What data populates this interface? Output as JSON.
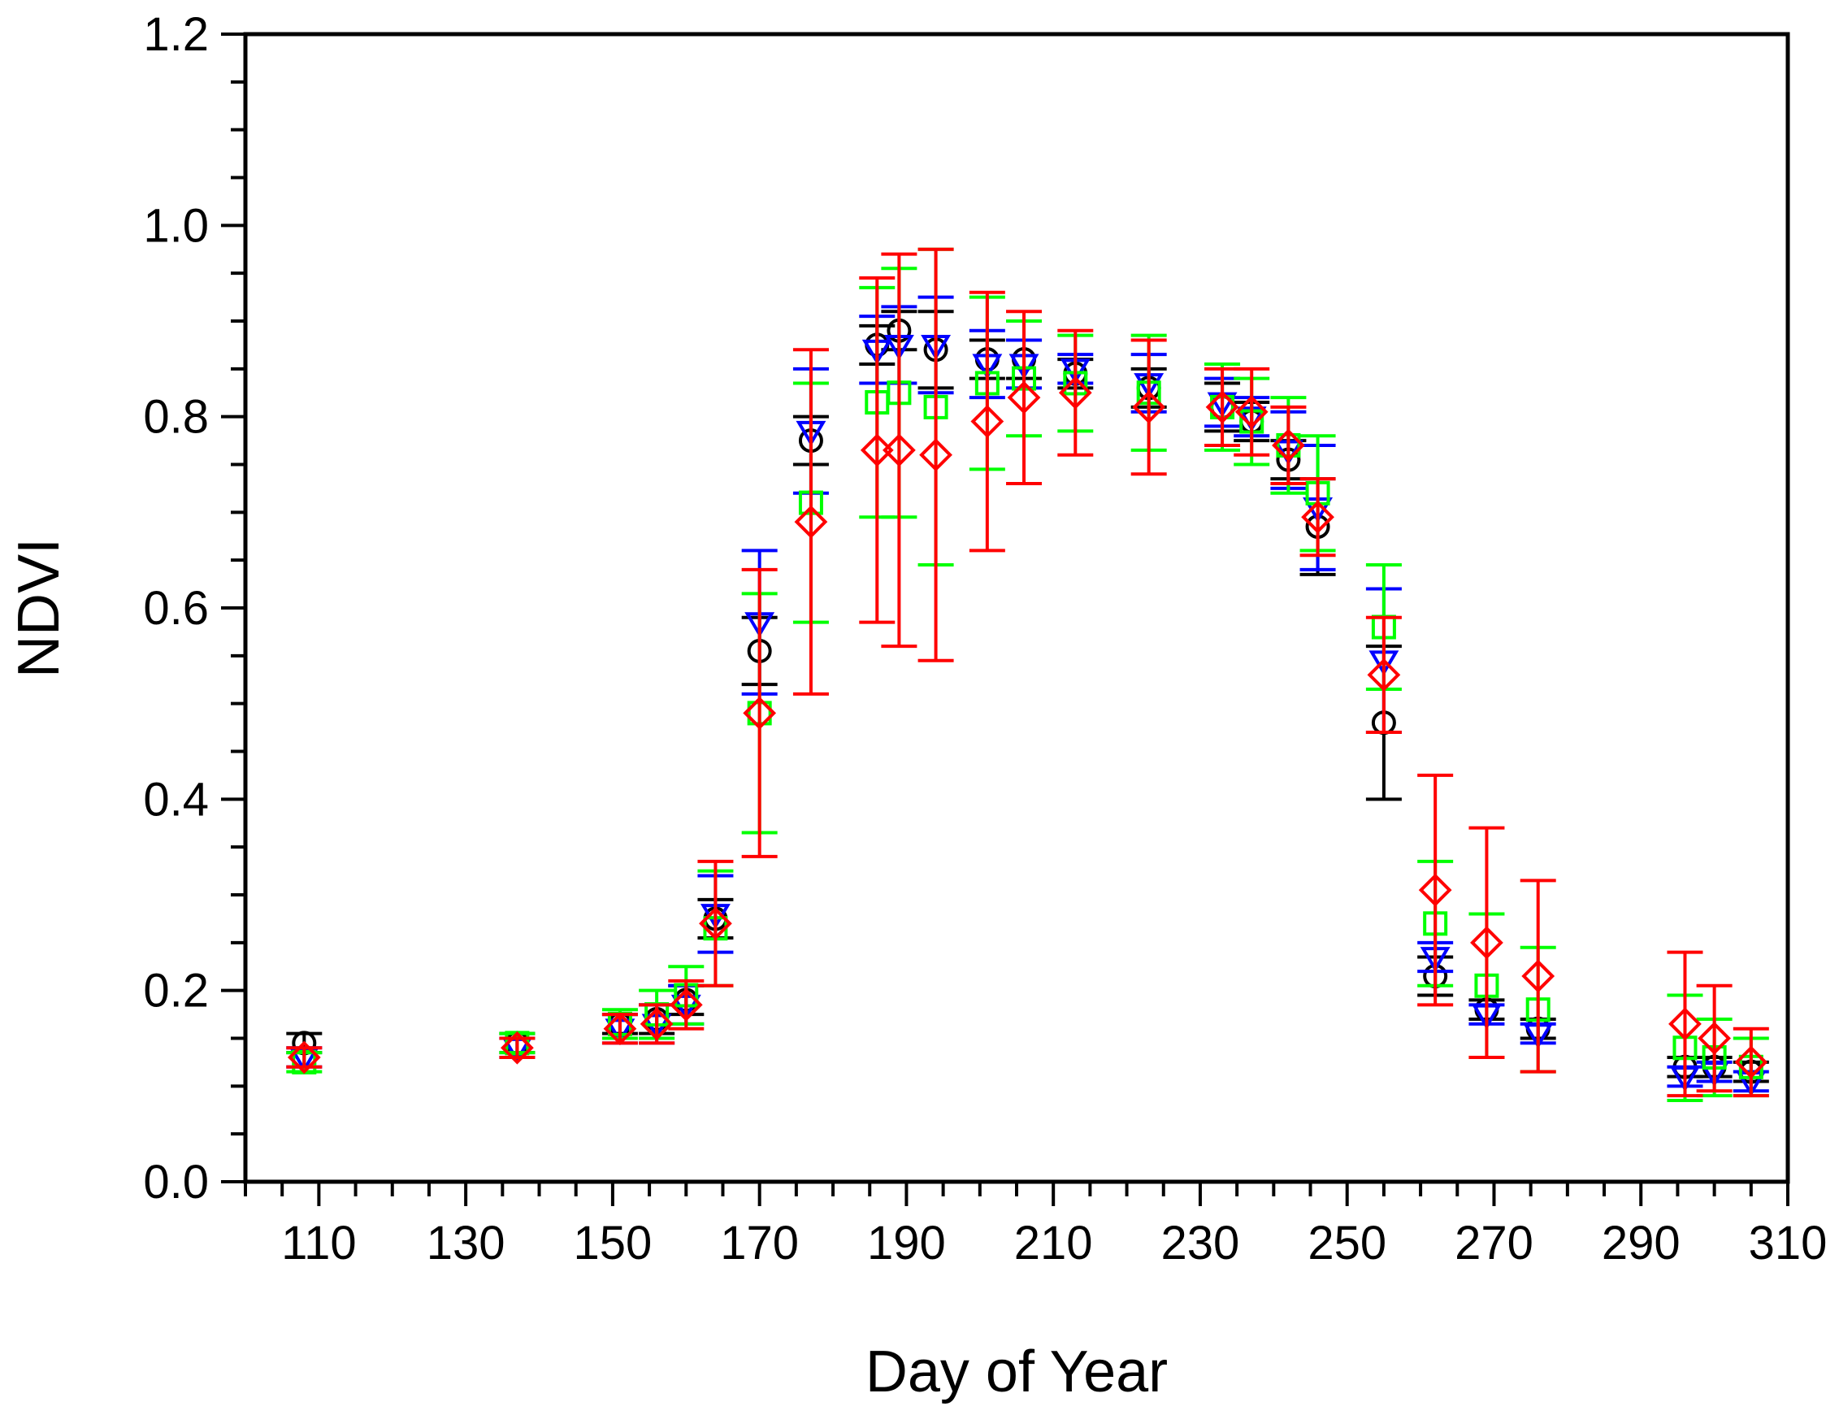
{
  "chart_data": {
    "type": "scatter",
    "title": "",
    "xlabel": "Day of Year",
    "ylabel": "NDVI",
    "xlim": [
      100,
      310
    ],
    "ylim": [
      0.0,
      1.2
    ],
    "x_ticks": [
      110,
      130,
      150,
      170,
      190,
      210,
      230,
      250,
      270,
      290,
      310
    ],
    "x_tick_labels": [
      "110",
      "130",
      "150",
      "170",
      "190",
      "210",
      "230",
      "250",
      "270",
      "290",
      "310"
    ],
    "y_ticks": [
      0.0,
      0.2,
      0.4,
      0.6,
      0.8,
      1.0,
      1.2
    ],
    "y_tick_labels": [
      "0.0",
      "0.2",
      "0.4",
      "0.6",
      "0.8",
      "1.0",
      "1.2"
    ],
    "series": [
      {
        "name": "series-1",
        "color": "#000000",
        "marker": "circle",
        "x": [
          108,
          137,
          151,
          156,
          160,
          164,
          170,
          177,
          186,
          189,
          194,
          201,
          206,
          213,
          223,
          233,
          237,
          242,
          246,
          255,
          262,
          269,
          276,
          296,
          300,
          305
        ],
        "y": [
          0.145,
          0.145,
          0.165,
          0.17,
          0.19,
          0.275,
          0.555,
          0.775,
          0.875,
          0.89,
          0.87,
          0.86,
          0.86,
          0.845,
          0.83,
          0.81,
          0.795,
          0.755,
          0.685,
          0.48,
          0.215,
          0.18,
          0.16,
          0.12,
          0.12,
          0.115
        ],
        "err": [
          0.01,
          0.01,
          0.01,
          0.015,
          0.015,
          0.02,
          0.035,
          0.025,
          0.02,
          0.02,
          0.04,
          0.02,
          0.02,
          0.015,
          0.02,
          0.025,
          0.02,
          0.02,
          0.05,
          0.08,
          0.02,
          0.01,
          0.01,
          0.01,
          0.01,
          0.01
        ]
      },
      {
        "name": "series-2",
        "color": "#0000ff",
        "marker": "triangle-down",
        "x": [
          108,
          137,
          151,
          156,
          160,
          164,
          170,
          177,
          186,
          189,
          194,
          201,
          206,
          213,
          223,
          233,
          237,
          242,
          246,
          255,
          262,
          269,
          276,
          296,
          300,
          305
        ],
        "y": [
          0.13,
          0.14,
          0.16,
          0.165,
          0.185,
          0.28,
          0.585,
          0.785,
          0.87,
          0.875,
          0.875,
          0.855,
          0.855,
          0.85,
          0.835,
          0.815,
          0.8,
          0.765,
          0.705,
          0.545,
          0.235,
          0.175,
          0.155,
          0.11,
          0.115,
          0.105
        ],
        "err": [
          0.01,
          0.01,
          0.015,
          0.02,
          0.02,
          0.04,
          0.075,
          0.065,
          0.035,
          0.04,
          0.05,
          0.035,
          0.025,
          0.015,
          0.03,
          0.025,
          0.02,
          0.04,
          0.065,
          0.075,
          0.015,
          0.01,
          0.01,
          0.01,
          0.01,
          0.01
        ]
      },
      {
        "name": "series-3",
        "color": "#00ff00",
        "marker": "square",
        "x": [
          108,
          137,
          151,
          156,
          160,
          164,
          170,
          177,
          186,
          189,
          194,
          201,
          206,
          213,
          223,
          233,
          237,
          242,
          246,
          255,
          262,
          269,
          276,
          296,
          300,
          305
        ],
        "y": [
          0.125,
          0.145,
          0.165,
          0.175,
          0.195,
          0.265,
          0.49,
          0.71,
          0.815,
          0.825,
          0.81,
          0.835,
          0.84,
          0.835,
          0.825,
          0.81,
          0.795,
          0.77,
          0.72,
          0.58,
          0.27,
          0.205,
          0.18,
          0.14,
          0.13,
          0.12
        ],
        "err": [
          0.01,
          0.01,
          0.015,
          0.025,
          0.03,
          0.06,
          0.125,
          0.125,
          0.12,
          0.13,
          0.165,
          0.09,
          0.06,
          0.05,
          0.06,
          0.045,
          0.045,
          0.05,
          0.06,
          0.065,
          0.065,
          0.075,
          0.065,
          0.055,
          0.04,
          0.03
        ]
      },
      {
        "name": "series-4",
        "color": "#ff0000",
        "marker": "diamond",
        "x": [
          108,
          137,
          151,
          156,
          160,
          164,
          170,
          177,
          186,
          189,
          194,
          201,
          206,
          213,
          223,
          233,
          237,
          242,
          246,
          255,
          262,
          269,
          276,
          296,
          300,
          305
        ],
        "y": [
          0.13,
          0.14,
          0.16,
          0.165,
          0.185,
          0.27,
          0.49,
          0.69,
          0.765,
          0.765,
          0.76,
          0.795,
          0.82,
          0.825,
          0.81,
          0.81,
          0.805,
          0.77,
          0.695,
          0.53,
          0.305,
          0.25,
          0.215,
          0.165,
          0.15,
          0.125
        ],
        "err": [
          0.01,
          0.01,
          0.015,
          0.02,
          0.025,
          0.065,
          0.15,
          0.18,
          0.18,
          0.205,
          0.215,
          0.135,
          0.09,
          0.065,
          0.07,
          0.04,
          0.045,
          0.04,
          0.04,
          0.06,
          0.12,
          0.12,
          0.1,
          0.075,
          0.055,
          0.035
        ]
      }
    ]
  }
}
